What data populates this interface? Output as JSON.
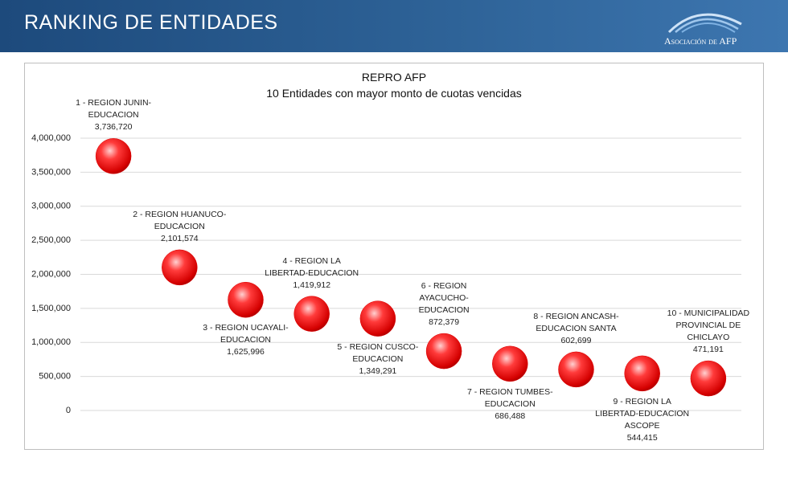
{
  "header": {
    "title": "RANKING DE ENTIDADES",
    "logo": "Asociación de AFP"
  },
  "chart_data": {
    "type": "bubble",
    "title": "REPRO AFP",
    "subtitle": "10 Entidades con mayor monto de cuotas vencidas",
    "categories": [
      "1 - REGION JUNIN-EDUCACION",
      "2 - REGION HUANUCO-EDUCACION",
      "3 - REGION UCAYALI-EDUCACION",
      "4 - REGION LA LIBERTAD-EDUCACION",
      "5 - REGION CUSCO-EDUCACION",
      "6 - REGION AYACUCHO-EDUCACION",
      "7 - REGION TUMBES-EDUCACION",
      "8 - REGION ANCASH-EDUCACION SANTA",
      "9 - REGION LA LIBERTAD-EDUCACION ASCOPE",
      "10 - MUNICIPALIDAD PROVINCIAL DE CHICLAYO"
    ],
    "values": [
      3736720,
      2101574,
      1625996,
      1419912,
      1349291,
      872379,
      686488,
      602699,
      544415,
      471191
    ],
    "value_labels": [
      "3,736,720",
      "2,101,574",
      "1,625,996",
      "1,419,912",
      "1,349,291",
      "872,379",
      "686,488",
      "602,699",
      "544,415",
      "471,191"
    ],
    "color": "#e00000",
    "ylim": [
      0,
      4000000
    ],
    "yticks": [
      0,
      {
        "value": 500000,
        "label": "500,000"
      },
      {
        "value": 1000000,
        "label": "1,000,000"
      },
      {
        "value": 1500000,
        "label": "1,500,000"
      },
      {
        "value": 2000000,
        "label": "2,000,000"
      },
      {
        "value": 2500000,
        "label": "2,500,000"
      },
      {
        "value": 3000000,
        "label": "3,000,000"
      },
      {
        "value": 3500000,
        "label": "3,500,000"
      },
      {
        "value": 4000000,
        "label": "4,000,000"
      }
    ],
    "grid": true
  }
}
